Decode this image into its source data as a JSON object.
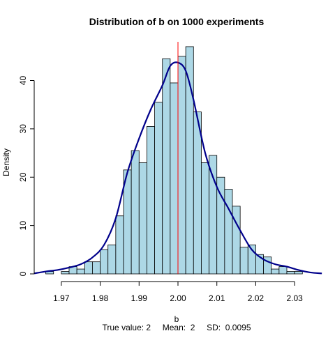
{
  "colors": {
    "bar_fill": "#ADD8E6",
    "bar_stroke": "#000000",
    "density_line": "#00008B",
    "true_value_line": "#FF0000"
  },
  "chart_data": {
    "type": "bar",
    "title": "Distribution of b on 1000 experiments",
    "xlabel": "b",
    "ylabel": "Density",
    "caption": "True value: 2     Mean:  2     SD:  0.0095",
    "xlim": [
      1.965,
      2.035
    ],
    "ylim": [
      0,
      48
    ],
    "grid": false,
    "x_ticks": [
      {
        "value": 1.97,
        "label": "1.97"
      },
      {
        "value": 1.98,
        "label": "1.98"
      },
      {
        "value": 1.99,
        "label": "1.99"
      },
      {
        "value": 2.0,
        "label": "2.00"
      },
      {
        "value": 2.01,
        "label": "2.01"
      },
      {
        "value": 2.02,
        "label": "2.02"
      },
      {
        "value": 2.03,
        "label": "2.03"
      }
    ],
    "y_ticks": [
      {
        "value": 0,
        "label": "0"
      },
      {
        "value": 10,
        "label": "10"
      },
      {
        "value": 20,
        "label": "20"
      },
      {
        "value": 30,
        "label": "30"
      },
      {
        "value": 40,
        "label": "40"
      }
    ],
    "bins": [
      {
        "x0": 1.966,
        "x1": 1.968,
        "density": 0.5
      },
      {
        "x0": 1.968,
        "x1": 1.97,
        "density": 0
      },
      {
        "x0": 1.97,
        "x1": 1.972,
        "density": 0.5
      },
      {
        "x0": 1.972,
        "x1": 1.974,
        "density": 1.5
      },
      {
        "x0": 1.974,
        "x1": 1.976,
        "density": 1
      },
      {
        "x0": 1.976,
        "x1": 1.978,
        "density": 2.5
      },
      {
        "x0": 1.978,
        "x1": 1.98,
        "density": 2.5
      },
      {
        "x0": 1.98,
        "x1": 1.982,
        "density": 5
      },
      {
        "x0": 1.982,
        "x1": 1.984,
        "density": 6
      },
      {
        "x0": 1.984,
        "x1": 1.986,
        "density": 12
      },
      {
        "x0": 1.986,
        "x1": 1.988,
        "density": 21.5
      },
      {
        "x0": 1.988,
        "x1": 1.99,
        "density": 25.5
      },
      {
        "x0": 1.99,
        "x1": 1.992,
        "density": 23
      },
      {
        "x0": 1.992,
        "x1": 1.994,
        "density": 30.5
      },
      {
        "x0": 1.994,
        "x1": 1.996,
        "density": 35.5
      },
      {
        "x0": 1.996,
        "x1": 1.998,
        "density": 44.5
      },
      {
        "x0": 1.998,
        "x1": 2.0,
        "density": 39.5
      },
      {
        "x0": 2.0,
        "x1": 2.002,
        "density": 45
      },
      {
        "x0": 2.002,
        "x1": 2.004,
        "density": 47
      },
      {
        "x0": 2.004,
        "x1": 2.006,
        "density": 33.5
      },
      {
        "x0": 2.006,
        "x1": 2.008,
        "density": 23
      },
      {
        "x0": 2.008,
        "x1": 2.01,
        "density": 24.5
      },
      {
        "x0": 2.01,
        "x1": 2.012,
        "density": 20
      },
      {
        "x0": 2.012,
        "x1": 2.014,
        "density": 17.5
      },
      {
        "x0": 2.014,
        "x1": 2.016,
        "density": 14
      },
      {
        "x0": 2.016,
        "x1": 2.018,
        "density": 5.5
      },
      {
        "x0": 2.018,
        "x1": 2.02,
        "density": 6
      },
      {
        "x0": 2.02,
        "x1": 2.022,
        "density": 4
      },
      {
        "x0": 2.022,
        "x1": 2.024,
        "density": 3.5
      },
      {
        "x0": 2.024,
        "x1": 2.026,
        "density": 1
      },
      {
        "x0": 2.026,
        "x1": 2.028,
        "density": 1.5
      },
      {
        "x0": 2.028,
        "x1": 2.03,
        "density": 0.5
      },
      {
        "x0": 2.03,
        "x1": 2.032,
        "density": 0.5
      }
    ],
    "density_curve": {
      "x": [
        1.963,
        1.966,
        1.969,
        1.972,
        1.975,
        1.978,
        1.981,
        1.984,
        1.987,
        1.99,
        1.993,
        1.996,
        1.998,
        2.0,
        2.002,
        2.004,
        2.007,
        2.01,
        2.013,
        2.016,
        2.019,
        2.022,
        2.025,
        2.028,
        2.031,
        2.034,
        2.037
      ],
      "y": [
        0.1,
        0.5,
        0.8,
        1.3,
        2.0,
        3.4,
        6.0,
        11.5,
        21.0,
        28.0,
        34.0,
        39.0,
        43.0,
        43.7,
        42.0,
        36.0,
        25.0,
        18.0,
        13.5,
        9.0,
        5.0,
        3.0,
        2.0,
        1.5,
        0.8,
        0.3,
        0.1
      ]
    },
    "reference_line": {
      "x": 2.0,
      "label": "True value"
    }
  }
}
